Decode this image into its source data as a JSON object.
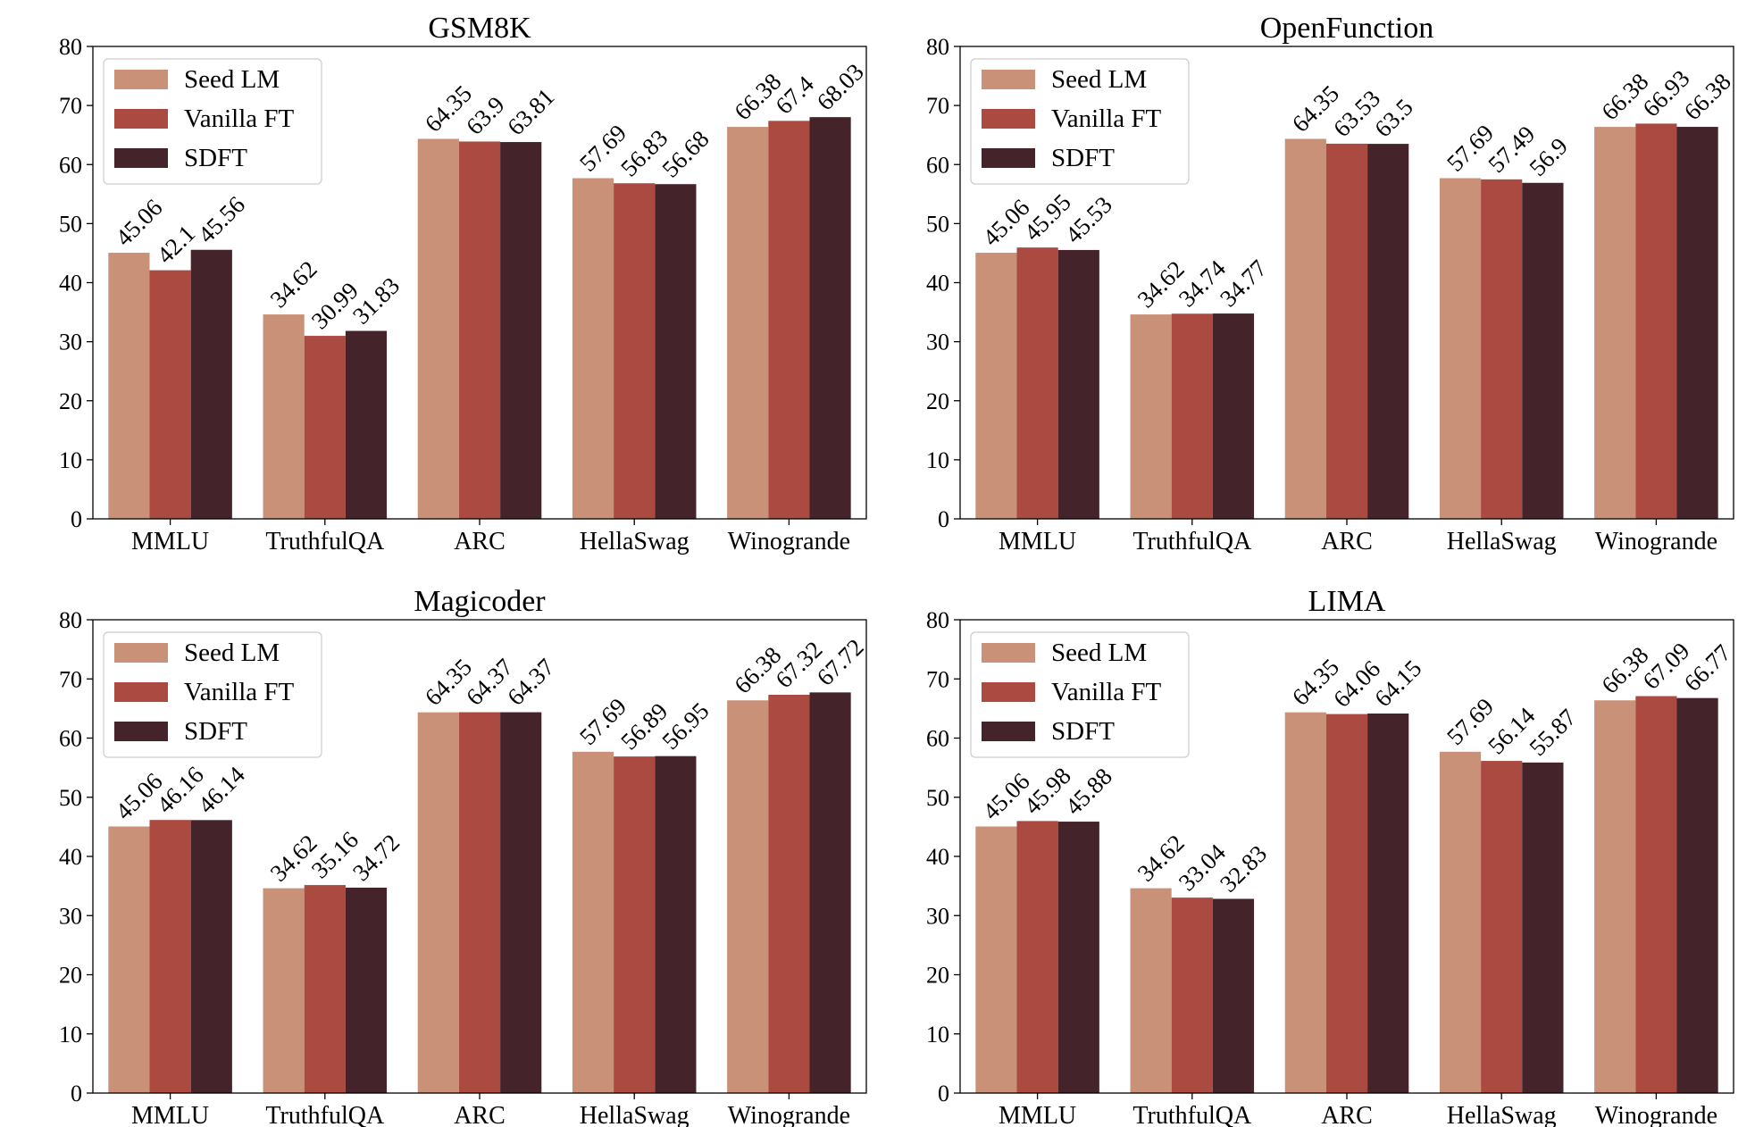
{
  "colors": {
    "seed_lm": "#c99278",
    "vanilla_ft": "#ab4a40",
    "sdft": "#44242a",
    "legend_border": "#cccccc"
  },
  "chart_data": [
    {
      "type": "bar",
      "title": "GSM8K",
      "xlabel": "",
      "ylabel": "",
      "ylim": [
        0,
        80
      ],
      "yticks": [
        0,
        10,
        20,
        30,
        40,
        50,
        60,
        70,
        80
      ],
      "grid": false,
      "legend_position": "top-left",
      "categories": [
        "MMLU",
        "TruthfulQA",
        "ARC",
        "HellaSwag",
        "Winogrande"
      ],
      "series": [
        {
          "name": "Seed LM",
          "values": [
            45.06,
            34.62,
            64.35,
            57.69,
            66.38
          ],
          "labels": [
            "45.06",
            "34.62",
            "64.35",
            "57.69",
            "66.38"
          ]
        },
        {
          "name": "Vanilla FT",
          "values": [
            42.1,
            30.99,
            63.9,
            56.83,
            67.4
          ],
          "labels": [
            "42.1",
            "30.99",
            "63.9",
            "56.83",
            "67.4"
          ]
        },
        {
          "name": "SDFT",
          "values": [
            45.56,
            31.83,
            63.81,
            56.68,
            68.03
          ],
          "labels": [
            "45.56",
            "31.83",
            "63.81",
            "56.68",
            "68.03"
          ]
        }
      ]
    },
    {
      "type": "bar",
      "title": "OpenFunction",
      "xlabel": "",
      "ylabel": "",
      "ylim": [
        0,
        80
      ],
      "yticks": [
        0,
        10,
        20,
        30,
        40,
        50,
        60,
        70,
        80
      ],
      "grid": false,
      "legend_position": "top-left",
      "categories": [
        "MMLU",
        "TruthfulQA",
        "ARC",
        "HellaSwag",
        "Winogrande"
      ],
      "series": [
        {
          "name": "Seed LM",
          "values": [
            45.06,
            34.62,
            64.35,
            57.69,
            66.38
          ],
          "labels": [
            "45.06",
            "34.62",
            "64.35",
            "57.69",
            "66.38"
          ]
        },
        {
          "name": "Vanilla FT",
          "values": [
            45.95,
            34.74,
            63.53,
            57.49,
            66.93
          ],
          "labels": [
            "45.95",
            "34.74",
            "63.53",
            "57.49",
            "66.93"
          ]
        },
        {
          "name": "SDFT",
          "values": [
            45.53,
            34.77,
            63.5,
            56.9,
            66.38
          ],
          "labels": [
            "45.53",
            "34.77",
            "63.5",
            "56.9",
            "66.38"
          ]
        }
      ]
    },
    {
      "type": "bar",
      "title": "Magicoder",
      "xlabel": "",
      "ylabel": "",
      "ylim": [
        0,
        80
      ],
      "yticks": [
        0,
        10,
        20,
        30,
        40,
        50,
        60,
        70,
        80
      ],
      "grid": false,
      "legend_position": "top-left",
      "categories": [
        "MMLU",
        "TruthfulQA",
        "ARC",
        "HellaSwag",
        "Winogrande"
      ],
      "series": [
        {
          "name": "Seed LM",
          "values": [
            45.06,
            34.62,
            64.35,
            57.69,
            66.38
          ],
          "labels": [
            "45.06",
            "34.62",
            "64.35",
            "57.69",
            "66.38"
          ]
        },
        {
          "name": "Vanilla FT",
          "values": [
            46.16,
            35.16,
            64.37,
            56.89,
            67.32
          ],
          "labels": [
            "46.16",
            "35.16",
            "64.37",
            "56.89",
            "67.32"
          ]
        },
        {
          "name": "SDFT",
          "values": [
            46.14,
            34.72,
            64.37,
            56.95,
            67.72
          ],
          "labels": [
            "46.14",
            "34.72",
            "64.37",
            "56.95",
            "67.72"
          ]
        }
      ]
    },
    {
      "type": "bar",
      "title": "LIMA",
      "xlabel": "",
      "ylabel": "",
      "ylim": [
        0,
        80
      ],
      "yticks": [
        0,
        10,
        20,
        30,
        40,
        50,
        60,
        70,
        80
      ],
      "grid": false,
      "legend_position": "top-left",
      "categories": [
        "MMLU",
        "TruthfulQA",
        "ARC",
        "HellaSwag",
        "Winogrande"
      ],
      "series": [
        {
          "name": "Seed LM",
          "values": [
            45.06,
            34.62,
            64.35,
            57.69,
            66.38
          ],
          "labels": [
            "45.06",
            "34.62",
            "64.35",
            "57.69",
            "66.38"
          ]
        },
        {
          "name": "Vanilla FT",
          "values": [
            45.98,
            33.04,
            64.06,
            56.14,
            67.09
          ],
          "labels": [
            "45.98",
            "33.04",
            "64.06",
            "56.14",
            "67.09"
          ]
        },
        {
          "name": "SDFT",
          "values": [
            45.88,
            32.83,
            64.15,
            55.87,
            66.77
          ],
          "labels": [
            "45.88",
            "32.83",
            "64.15",
            "55.87",
            "66.77"
          ]
        }
      ]
    }
  ]
}
